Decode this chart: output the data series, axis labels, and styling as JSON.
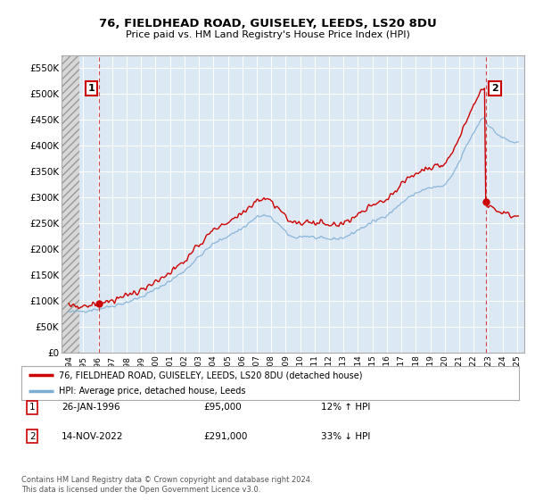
{
  "title": "76, FIELDHEAD ROAD, GUISELEY, LEEDS, LS20 8DU",
  "subtitle": "Price paid vs. HM Land Registry's House Price Index (HPI)",
  "legend_line1": "76, FIELDHEAD ROAD, GUISELEY, LEEDS, LS20 8DU (detached house)",
  "legend_line2": "HPI: Average price, detached house, Leeds",
  "footnote": "Contains HM Land Registry data © Crown copyright and database right 2024.\nThis data is licensed under the Open Government Licence v3.0.",
  "marker1_label": "1",
  "marker2_label": "2",
  "marker1_date": "26-JAN-1996",
  "marker1_price": "£95,000",
  "marker1_hpi": "12% ↑ HPI",
  "marker2_date": "14-NOV-2022",
  "marker2_price": "£291,000",
  "marker2_hpi": "33% ↓ HPI",
  "marker1_x": 1996.08,
  "marker1_y": 95000,
  "marker2_x": 2022.87,
  "marker2_y": 291000,
  "ylim": [
    0,
    575000
  ],
  "xlim": [
    1993.5,
    2025.5
  ],
  "yticks": [
    0,
    50000,
    100000,
    150000,
    200000,
    250000,
    300000,
    350000,
    400000,
    450000,
    500000,
    550000
  ],
  "ytick_labels": [
    "£0",
    "£50K",
    "£100K",
    "£150K",
    "£200K",
    "£250K",
    "£300K",
    "£350K",
    "£400K",
    "£450K",
    "£500K",
    "£550K"
  ],
  "xticks": [
    1994,
    1995,
    1996,
    1997,
    1998,
    1999,
    2000,
    2001,
    2002,
    2003,
    2004,
    2005,
    2006,
    2007,
    2008,
    2009,
    2010,
    2011,
    2012,
    2013,
    2014,
    2015,
    2016,
    2017,
    2018,
    2019,
    2020,
    2021,
    2022,
    2023,
    2024,
    2025
  ],
  "background_color": "#ffffff",
  "plot_bg_color": "#dde8f5",
  "red_line_color": "#cc0000",
  "blue_line_color": "#7aadd4",
  "grid_color": "#ffffff",
  "marker_box_color": "#cc0000",
  "hatch_end_x": 1994.75
}
